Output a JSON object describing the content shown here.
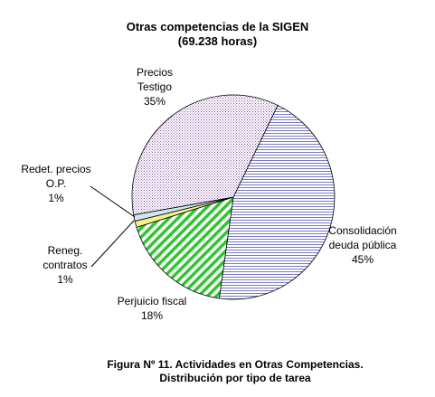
{
  "title": "Otras competencias de la SIGEN",
  "subtitle": "(69.238 horas)",
  "caption_line1": "Figura Nº 11. Actividades en Otras Competencias.",
  "caption_line2": "Distribución por tipo de tarea",
  "chart_data": {
    "type": "pie",
    "title": "Otras competencias de la SIGEN",
    "subtitle": "(69.238 horas)",
    "slices": [
      {
        "label": [
          "Consolidación",
          "deuda pública"
        ],
        "percent_label": "45%",
        "value": 45,
        "pattern": "horizontal-lines",
        "color": "#7a78c0"
      },
      {
        "label": [
          "Perjuicio fiscal"
        ],
        "percent_label": "18%",
        "value": 18,
        "pattern": "green-diagonal",
        "color": "#2fc52f"
      },
      {
        "label": [
          "Reneg.",
          "contratos"
        ],
        "percent_label": "1%",
        "value": 1,
        "pattern": "solid",
        "color": "#f3f08a"
      },
      {
        "label": [
          "Redet. precios",
          "O.P."
        ],
        "percent_label": "1%",
        "value": 1,
        "pattern": "solid",
        "color": "#cde8f2"
      },
      {
        "label": [
          "Precios",
          "Testigo"
        ],
        "percent_label": "35%",
        "value": 35,
        "pattern": "purple-dots",
        "color": "#8a5aa8"
      }
    ],
    "legend": "none",
    "labels_outside": true
  }
}
